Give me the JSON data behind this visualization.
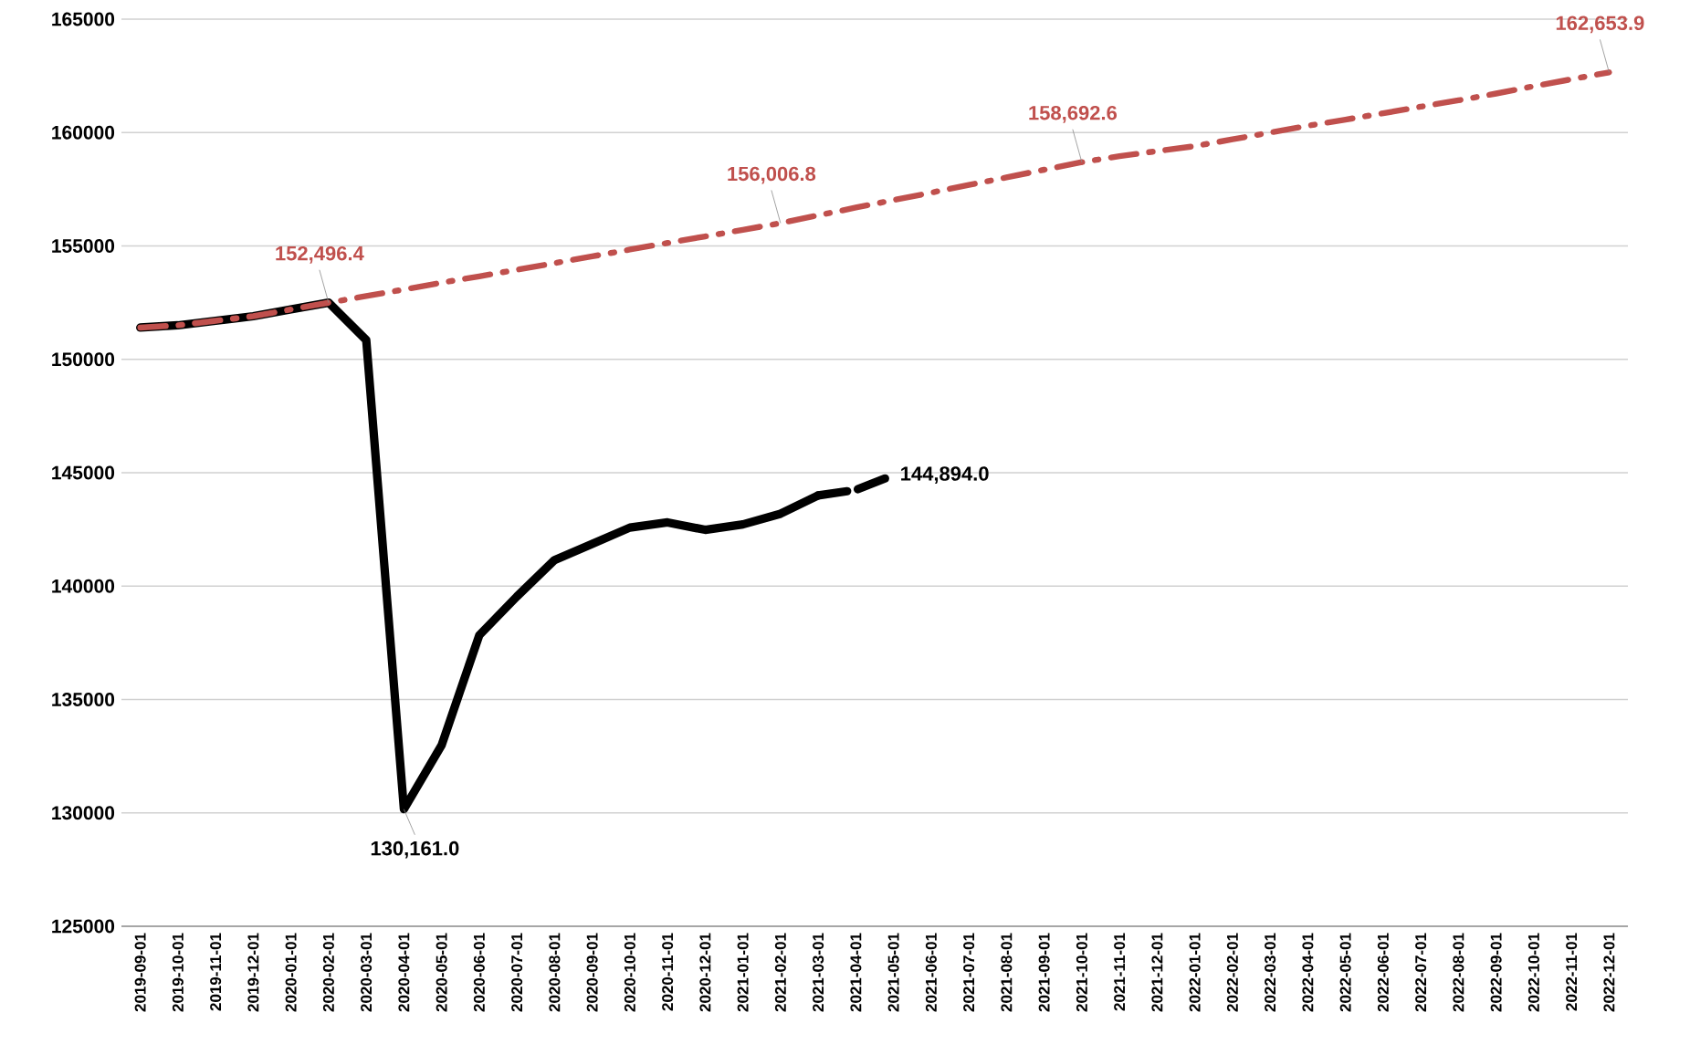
{
  "chart_data": {
    "type": "line",
    "categories": [
      "2019-09-01",
      "2019-10-01",
      "2019-11-01",
      "2019-12-01",
      "2020-01-01",
      "2020-02-01",
      "2020-03-01",
      "2020-04-01",
      "2020-05-01",
      "2020-06-01",
      "2020-07-01",
      "2020-08-01",
      "2020-09-01",
      "2020-10-01",
      "2020-11-01",
      "2020-12-01",
      "2021-01-01",
      "2021-02-01",
      "2021-03-01",
      "2021-04-01",
      "2021-05-01",
      "2021-06-01",
      "2021-07-01",
      "2021-08-01",
      "2021-09-01",
      "2021-10-01",
      "2021-11-01",
      "2021-12-01",
      "2022-01-01",
      "2022-02-01",
      "2022-03-01",
      "2022-04-01",
      "2022-05-01",
      "2022-06-01",
      "2022-07-01",
      "2022-08-01",
      "2022-09-01",
      "2022-10-01",
      "2022-11-01",
      "2022-12-01"
    ],
    "series": [
      {
        "color": "#000000",
        "line_style": "solid",
        "values": [
          151400,
          151500,
          151700,
          151900,
          152200,
          152500,
          150850,
          130161.0,
          132980,
          137830,
          139540,
          141150,
          141860,
          142580,
          142810,
          142480,
          142720,
          143190,
          144000,
          null,
          null,
          null,
          null,
          null,
          null,
          null,
          null,
          null,
          null,
          null,
          null,
          null,
          null,
          null,
          null,
          null,
          null,
          null,
          null,
          null
        ],
        "value_labels": [
          null,
          null,
          null,
          null,
          null,
          null,
          null,
          "130,161.0",
          null,
          null,
          null,
          null,
          null,
          null,
          null,
          null,
          null,
          null,
          null,
          null,
          null,
          null,
          null,
          null,
          null,
          null,
          null,
          null,
          null,
          null,
          null,
          null,
          null,
          null,
          null,
          null,
          null,
          null,
          null,
          null
        ]
      },
      {
        "color": "#000000",
        "line_style": "dashed",
        "values": [
          null,
          null,
          null,
          null,
          null,
          null,
          null,
          null,
          null,
          null,
          null,
          null,
          null,
          null,
          null,
          null,
          null,
          null,
          144000,
          144240,
          144894.0,
          null,
          null,
          null,
          null,
          null,
          null,
          null,
          null,
          null,
          null,
          null,
          null,
          null,
          null,
          null,
          null,
          null,
          null,
          null
        ],
        "value_labels": [
          null,
          null,
          null,
          null,
          null,
          null,
          null,
          null,
          null,
          null,
          null,
          null,
          null,
          null,
          null,
          null,
          null,
          null,
          null,
          null,
          "144,894.0",
          null,
          null,
          null,
          null,
          null,
          null,
          null,
          null,
          null,
          null,
          null,
          null,
          null,
          null,
          null,
          null,
          null,
          null,
          null
        ]
      },
      {
        "color": "#c0504d",
        "line_style": "dashdot",
        "values": [
          151400,
          151500,
          151700,
          151900,
          152200,
          152496.4,
          152790,
          153080,
          153380,
          153660,
          153950,
          154240,
          154540,
          154840,
          155130,
          155420,
          155710,
          156006.8,
          156350,
          156690,
          157020,
          157350,
          157690,
          158020,
          158360,
          158692.6,
          158960,
          159180,
          159400,
          159700,
          160000,
          160300,
          160570,
          160850,
          161140,
          161420,
          161720,
          162040,
          162350,
          162653.9
        ],
        "value_labels": [
          null,
          null,
          null,
          null,
          null,
          "152,496.4",
          null,
          null,
          null,
          null,
          null,
          null,
          null,
          null,
          null,
          null,
          null,
          "156,006.8",
          null,
          null,
          null,
          null,
          null,
          null,
          null,
          "158,692.6",
          null,
          null,
          null,
          null,
          null,
          null,
          null,
          null,
          null,
          null,
          null,
          null,
          null,
          "162,653.9"
        ]
      }
    ],
    "ylim": [
      125000,
      165000
    ],
    "yticks": [
      125000,
      130000,
      135000,
      140000,
      145000,
      150000,
      155000,
      160000,
      165000
    ],
    "grid": "y",
    "marker": "none"
  }
}
